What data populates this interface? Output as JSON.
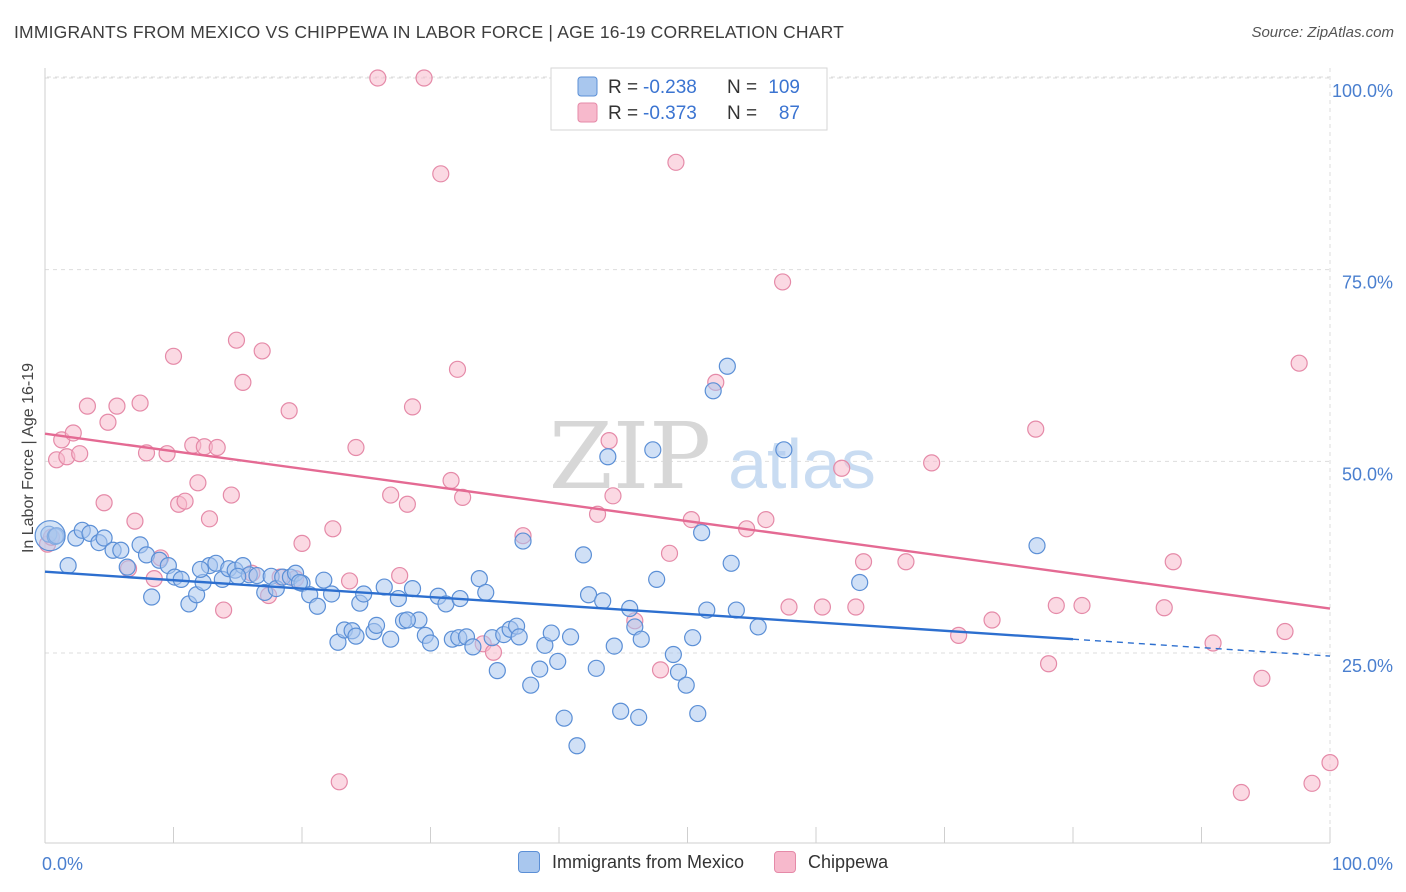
{
  "title": "IMMIGRANTS FROM MEXICO VS CHIPPEWA IN LABOR FORCE | AGE 16-19 CORRELATION CHART",
  "source": "Source: ZipAtlas.com",
  "watermark": {
    "zip": "ZIP",
    "atlas": "atlas"
  },
  "colors": {
    "blue_fill": "#a9c7ee",
    "blue_stroke": "#5b8fd6",
    "blue_line": "#2d6fcf",
    "pink_fill": "#f7b9cc",
    "pink_stroke": "#e58aa8",
    "pink_line": "#e46a93",
    "axis_label": "#4a7fcf",
    "grid": "#dddddd"
  },
  "legend": {
    "blue": {
      "r_label": "R =",
      "r_value": "-0.238",
      "n_label": "N =",
      "n_value": "109"
    },
    "pink": {
      "r_label": "R =",
      "r_value": "-0.373",
      "n_label": "N =",
      "n_value": "87"
    }
  },
  "chart_data": {
    "type": "scatter",
    "title": "IMMIGRANTS FROM MEXICO VS CHIPPEWA IN LABOR FORCE | AGE 16-19 CORRELATION CHART",
    "xlabel": "",
    "ylabel": "In Labor Force | Age 16-19",
    "xlim": [
      0,
      100
    ],
    "ylim": [
      0,
      103
    ],
    "x_tick_labels": [
      "0.0%",
      "100.0%"
    ],
    "y_ticks": [
      25,
      50,
      75,
      100
    ],
    "y_tick_labels": [
      "25.0%",
      "50.0%",
      "75.0%",
      "100.0%"
    ],
    "grid": true,
    "legend_position": "top-center",
    "series": [
      {
        "name": "Immigrants from Mexico",
        "color": "#a9c7ee",
        "trend": {
          "x0": 0,
          "y0": 35.6,
          "x1": 80,
          "y1": 26.8,
          "dashed_to_x": 100,
          "dashed_to_y": 24.6
        },
        "points": [
          [
            0.3,
            40.5
          ],
          [
            0.8,
            40.2
          ],
          [
            1.8,
            36.4
          ],
          [
            2.4,
            40.0
          ],
          [
            2.9,
            41.0
          ],
          [
            3.5,
            40.6
          ],
          [
            4.2,
            39.4
          ],
          [
            4.6,
            40.0
          ],
          [
            5.3,
            38.4
          ],
          [
            5.9,
            38.4
          ],
          [
            6.4,
            36.2
          ],
          [
            7.4,
            39.1
          ],
          [
            7.9,
            37.8
          ],
          [
            8.3,
            32.3
          ],
          [
            8.9,
            37.1
          ],
          [
            9.6,
            36.4
          ],
          [
            10.1,
            34.9
          ],
          [
            10.6,
            34.6
          ],
          [
            11.2,
            31.4
          ],
          [
            11.8,
            32.6
          ],
          [
            12.3,
            34.2
          ],
          [
            12.8,
            36.4
          ],
          [
            13.3,
            36.7
          ],
          [
            13.8,
            34.6
          ],
          [
            14.3,
            36.0
          ],
          [
            14.8,
            35.8
          ],
          [
            15.4,
            36.4
          ],
          [
            15.9,
            35.2
          ],
          [
            16.5,
            35.1
          ],
          [
            17.1,
            32.9
          ],
          [
            17.6,
            35.0
          ],
          [
            18.0,
            33.4
          ],
          [
            18.5,
            34.9
          ],
          [
            19.1,
            34.9
          ],
          [
            19.5,
            35.4
          ],
          [
            20.0,
            34.1
          ],
          [
            20.6,
            32.6
          ],
          [
            21.2,
            31.1
          ],
          [
            21.7,
            34.5
          ],
          [
            22.3,
            32.7
          ],
          [
            22.8,
            26.4
          ],
          [
            23.3,
            28.0
          ],
          [
            23.9,
            27.9
          ],
          [
            24.5,
            31.5
          ],
          [
            24.8,
            32.7
          ],
          [
            25.6,
            27.8
          ],
          [
            25.8,
            28.6
          ],
          [
            26.4,
            33.6
          ],
          [
            26.9,
            26.8
          ],
          [
            27.5,
            32.1
          ],
          [
            27.9,
            29.2
          ],
          [
            28.6,
            33.4
          ],
          [
            29.1,
            29.3
          ],
          [
            29.6,
            27.3
          ],
          [
            30.0,
            26.3
          ],
          [
            30.6,
            32.4
          ],
          [
            31.2,
            31.4
          ],
          [
            31.7,
            26.8
          ],
          [
            32.2,
            27.0
          ],
          [
            32.8,
            27.1
          ],
          [
            33.3,
            25.8
          ],
          [
            33.8,
            34.7
          ],
          [
            34.3,
            32.9
          ],
          [
            34.8,
            27.0
          ],
          [
            35.2,
            22.7
          ],
          [
            35.7,
            27.4
          ],
          [
            36.2,
            28.1
          ],
          [
            36.7,
            28.5
          ],
          [
            37.2,
            39.6
          ],
          [
            37.8,
            20.8
          ],
          [
            38.5,
            22.9
          ],
          [
            38.9,
            26.0
          ],
          [
            39.4,
            27.6
          ],
          [
            39.9,
            23.9
          ],
          [
            40.4,
            16.5
          ],
          [
            40.9,
            27.1
          ],
          [
            41.4,
            12.9
          ],
          [
            41.9,
            37.8
          ],
          [
            42.3,
            32.6
          ],
          [
            42.9,
            23.0
          ],
          [
            43.4,
            31.8
          ],
          [
            43.8,
            50.6
          ],
          [
            44.3,
            25.9
          ],
          [
            44.8,
            17.4
          ],
          [
            45.5,
            30.8
          ],
          [
            45.9,
            28.4
          ],
          [
            46.2,
            16.6
          ],
          [
            47.3,
            51.5
          ],
          [
            47.6,
            34.6
          ],
          [
            48.9,
            24.8
          ],
          [
            49.3,
            22.5
          ],
          [
            49.9,
            20.8
          ],
          [
            50.4,
            27.0
          ],
          [
            50.8,
            17.1
          ],
          [
            51.5,
            30.6
          ],
          [
            51.1,
            40.7
          ],
          [
            52.0,
            59.2
          ],
          [
            53.1,
            62.4
          ],
          [
            53.4,
            36.7
          ],
          [
            55.5,
            28.4
          ],
          [
            57.5,
            51.5
          ],
          [
            63.4,
            34.2
          ],
          [
            77.2,
            39.0
          ],
          [
            0.9,
            40.3
          ],
          [
            12.1,
            35.9
          ],
          [
            15.0,
            35.0
          ],
          [
            19.8,
            34.2
          ],
          [
            28.2,
            29.3
          ],
          [
            32.3,
            32.1
          ],
          [
            36.9,
            27.1
          ],
          [
            46.4,
            26.8
          ],
          [
            53.8,
            30.6
          ],
          [
            24.2,
            27.2
          ]
        ]
      },
      {
        "name": "Chippewa",
        "color": "#f7b9cc",
        "trend": {
          "x0": 0,
          "y0": 53.6,
          "x1": 100,
          "y1": 30.8
        },
        "points": [
          [
            0.2,
            39.2
          ],
          [
            0.5,
            40.1
          ],
          [
            0.9,
            50.2
          ],
          [
            1.3,
            52.8
          ],
          [
            1.7,
            50.6
          ],
          [
            2.2,
            53.7
          ],
          [
            2.7,
            51.0
          ],
          [
            3.3,
            57.2
          ],
          [
            4.6,
            44.6
          ],
          [
            4.9,
            55.1
          ],
          [
            5.6,
            57.2
          ],
          [
            6.5,
            36.0
          ],
          [
            7.0,
            42.2
          ],
          [
            7.4,
            57.6
          ],
          [
            7.9,
            51.1
          ],
          [
            8.5,
            34.7
          ],
          [
            9.0,
            37.4
          ],
          [
            9.5,
            51.0
          ],
          [
            10.0,
            63.7
          ],
          [
            10.4,
            44.4
          ],
          [
            10.9,
            44.8
          ],
          [
            11.5,
            52.1
          ],
          [
            11.9,
            47.2
          ],
          [
            12.4,
            51.9
          ],
          [
            12.8,
            42.5
          ],
          [
            13.4,
            51.8
          ],
          [
            13.9,
            30.6
          ],
          [
            14.5,
            45.6
          ],
          [
            14.9,
            65.8
          ],
          [
            15.4,
            60.3
          ],
          [
            16.1,
            35.4
          ],
          [
            16.9,
            64.4
          ],
          [
            17.4,
            32.5
          ],
          [
            18.3,
            34.9
          ],
          [
            19.0,
            56.6
          ],
          [
            19.5,
            34.7
          ],
          [
            20.0,
            39.3
          ],
          [
            22.4,
            41.2
          ],
          [
            22.9,
            8.2
          ],
          [
            23.7,
            34.4
          ],
          [
            24.2,
            51.8
          ],
          [
            25.9,
            100.0
          ],
          [
            26.9,
            45.6
          ],
          [
            27.6,
            35.1
          ],
          [
            28.2,
            44.4
          ],
          [
            28.6,
            57.1
          ],
          [
            29.5,
            100.0
          ],
          [
            30.8,
            87.5
          ],
          [
            31.6,
            47.5
          ],
          [
            32.1,
            62.0
          ],
          [
            32.5,
            45.3
          ],
          [
            34.1,
            26.2
          ],
          [
            34.9,
            25.1
          ],
          [
            37.2,
            40.3
          ],
          [
            43.0,
            43.1
          ],
          [
            43.9,
            52.7
          ],
          [
            44.2,
            45.5
          ],
          [
            45.0,
            94.3
          ],
          [
            45.9,
            29.2
          ],
          [
            47.9,
            22.8
          ],
          [
            48.6,
            38.0
          ],
          [
            49.1,
            89.0
          ],
          [
            50.3,
            42.4
          ],
          [
            52.2,
            60.3
          ],
          [
            54.6,
            41.2
          ],
          [
            56.1,
            42.4
          ],
          [
            57.4,
            73.4
          ],
          [
            57.9,
            31.0
          ],
          [
            59.1,
            100.0
          ],
          [
            60.5,
            31.0
          ],
          [
            62.0,
            49.1
          ],
          [
            63.1,
            31.0
          ],
          [
            63.7,
            36.9
          ],
          [
            67.0,
            36.9
          ],
          [
            69.0,
            49.8
          ],
          [
            71.1,
            27.3
          ],
          [
            73.7,
            29.3
          ],
          [
            77.1,
            54.2
          ],
          [
            78.1,
            23.6
          ],
          [
            78.7,
            31.2
          ],
          [
            80.7,
            31.2
          ],
          [
            87.1,
            30.9
          ],
          [
            87.8,
            36.9
          ],
          [
            90.9,
            26.3
          ],
          [
            93.1,
            6.8
          ],
          [
            94.7,
            21.7
          ],
          [
            96.5,
            27.8
          ],
          [
            97.6,
            62.8
          ],
          [
            98.6,
            8.0
          ],
          [
            100.0,
            10.7
          ]
        ]
      }
    ]
  }
}
